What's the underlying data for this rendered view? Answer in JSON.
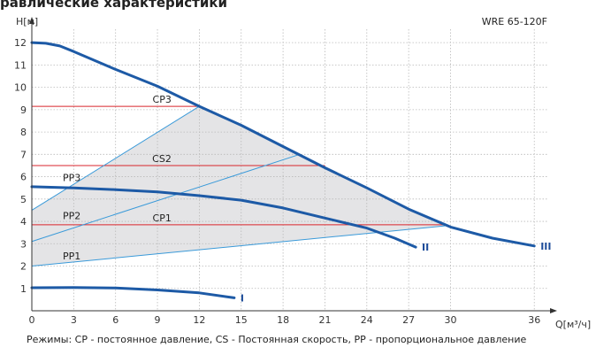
{
  "page_title": "равлические характеристики",
  "caption": "Режимы: CP - постоянное давление, CS - Постоянная скорость, PP - пропорциональное давление",
  "colors": {
    "curve": "#1d5aa6",
    "thin": "#3a9ad9",
    "cp": "#d9262c",
    "area": "#e4e4e6",
    "grid": "#b9b9b9"
  },
  "chart_data": {
    "type": "line",
    "title": "WRE 65-120F",
    "ylabel": "H[м]",
    "xlabel": "Q[м³/ч]",
    "x_ticks": [
      0,
      3,
      6,
      9,
      12,
      15,
      18,
      21,
      24,
      27,
      30,
      36
    ],
    "y_ticks": [
      1,
      2,
      3,
      4,
      5,
      6,
      7,
      8,
      9,
      10,
      11,
      12
    ],
    "xlim": [
      0,
      37
    ],
    "ylim": [
      0,
      12.6
    ],
    "grid": true,
    "speed_curves": [
      {
        "label": "III",
        "points": [
          [
            0,
            12.0
          ],
          [
            1,
            11.97
          ],
          [
            2,
            11.85
          ],
          [
            3,
            11.6
          ],
          [
            6,
            10.8
          ],
          [
            9,
            10.05
          ],
          [
            12,
            9.15
          ],
          [
            15,
            8.3
          ],
          [
            18,
            7.35
          ],
          [
            21,
            6.4
          ],
          [
            24,
            5.5
          ],
          [
            27,
            4.55
          ],
          [
            30,
            3.75
          ],
          [
            33,
            3.25
          ],
          [
            36,
            2.9
          ]
        ]
      },
      {
        "label": "II",
        "points": [
          [
            0,
            5.55
          ],
          [
            3,
            5.5
          ],
          [
            6,
            5.42
          ],
          [
            9,
            5.32
          ],
          [
            12,
            5.15
          ],
          [
            15,
            4.95
          ],
          [
            18,
            4.6
          ],
          [
            21,
            4.15
          ],
          [
            24,
            3.7
          ],
          [
            26,
            3.25
          ],
          [
            27.5,
            2.85
          ]
        ]
      },
      {
        "label": "I",
        "points": [
          [
            0,
            1.03
          ],
          [
            3,
            1.04
          ],
          [
            6,
            1.02
          ],
          [
            9,
            0.93
          ],
          [
            12,
            0.8
          ],
          [
            14.5,
            0.58
          ]
        ]
      }
    ],
    "cp_lines": [
      {
        "label": "CP3",
        "y": 9.15,
        "x_end": 12
      },
      {
        "label": "CS2",
        "y": 6.5,
        "x_end": 21
      },
      {
        "label": "CP1",
        "y": 3.85,
        "x_end": 29.6
      }
    ],
    "pp_lines": [
      {
        "label": "PP3",
        "y0": 4.5,
        "x1": 12,
        "y1": 9.15
      },
      {
        "label": "PP2",
        "y0": 3.1,
        "x1": 19.2,
        "y1": 7.0
      },
      {
        "label": "PP1",
        "y0": 2.0,
        "x1": 29.6,
        "y1": 3.8
      }
    ],
    "operating_area": [
      [
        0,
        2.0
      ],
      [
        0,
        4.5
      ],
      [
        12,
        9.15
      ],
      [
        29.6,
        3.8
      ]
    ]
  }
}
